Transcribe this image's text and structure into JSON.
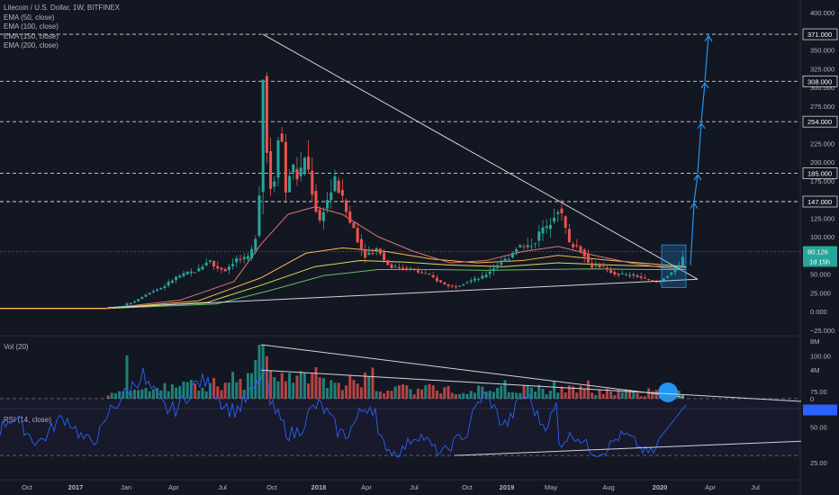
{
  "header": {
    "symbol_line": "Litecoin / U.S. Dollar, 1W, BITFINEX",
    "indicators": [
      "EMA (50, close)",
      "EMA (100, close)",
      "EMA (150, close)",
      "EMA (200, close)"
    ]
  },
  "price_axis_ticks": [
    "400.000",
    "375.000",
    "350.000",
    "325.000",
    "300.000",
    "275.000",
    "250.000",
    "225.000",
    "200.000",
    "175.000",
    "150.000",
    "125.000",
    "100.000",
    "75.000",
    "50.000",
    "25.000",
    "0.000",
    "−25.000"
  ],
  "price_level_labels": [
    "371.000",
    "308.000",
    "254.000",
    "185.000",
    "147.000"
  ],
  "current_price": {
    "value": "80.126",
    "countdown": "1d 15h"
  },
  "volume_pane": {
    "label": "Vol (20)",
    "ticks": [
      "8M",
      "4M",
      "0"
    ]
  },
  "rsi_pane": {
    "label": "RSI (14, close)",
    "ticks": [
      "100.00",
      "75.00",
      "50.00",
      "25.00"
    ]
  },
  "time_axis_labels": [
    "Oct",
    "2017",
    "Jan",
    "Apr",
    "Jul",
    "Oct",
    "2018",
    "Apr",
    "Jul",
    "Oct",
    "2019",
    "May",
    "Aug",
    "2020",
    "Apr",
    "Jul"
  ],
  "colors": {
    "background": "#131722",
    "up": "#26a69a",
    "down": "#ef5350",
    "trendline": "#d1d4dc",
    "arrow": "#2196f3",
    "rsi": "#2962ff",
    "ema50": "#e57373",
    "ema100": "#ffb74d",
    "ema150": "#d4e157",
    "ema200": "#66bb6a"
  },
  "chart_data": {
    "type": "candlestick",
    "title": "Litecoin / U.S. Dollar, 1W, BITFINEX",
    "ylim": [
      -35,
      410
    ],
    "price_levels": [
      371,
      308,
      254,
      185,
      147
    ],
    "price_path": [
      [
        0,
        5
      ],
      [
        100,
        5
      ],
      [
        120,
        5
      ],
      [
        135,
        7
      ],
      [
        150,
        14
      ],
      [
        165,
        25
      ],
      [
        180,
        32
      ],
      [
        195,
        45
      ],
      [
        205,
        50
      ],
      [
        220,
        55
      ],
      [
        232,
        70
      ],
      [
        238,
        60
      ],
      [
        250,
        55
      ],
      [
        262,
        70
      ],
      [
        275,
        70
      ],
      [
        283,
        90
      ],
      [
        288,
        160
      ],
      [
        292,
        320
      ],
      [
        297,
        200
      ],
      [
        303,
        145
      ],
      [
        308,
        240
      ],
      [
        313,
        230
      ],
      [
        318,
        150
      ],
      [
        323,
        200
      ],
      [
        329,
        180
      ],
      [
        334,
        185
      ],
      [
        339,
        210
      ],
      [
        344,
        180
      ],
      [
        350,
        140
      ],
      [
        355,
        120
      ],
      [
        360,
        140
      ],
      [
        366,
        155
      ],
      [
        372,
        175
      ],
      [
        377,
        160
      ],
      [
        383,
        140
      ],
      [
        388,
        120
      ],
      [
        394,
        110
      ],
      [
        400,
        85
      ],
      [
        406,
        75
      ],
      [
        412,
        80
      ],
      [
        420,
        85
      ],
      [
        428,
        65
      ],
      [
        435,
        60
      ],
      [
        445,
        58
      ],
      [
        455,
        58
      ],
      [
        465,
        52
      ],
      [
        475,
        50
      ],
      [
        485,
        42
      ],
      [
        495,
        35
      ],
      [
        505,
        33
      ],
      [
        515,
        38
      ],
      [
        525,
        42
      ],
      [
        535,
        45
      ],
      [
        545,
        55
      ],
      [
        555,
        65
      ],
      [
        565,
        72
      ],
      [
        575,
        88
      ],
      [
        585,
        85
      ],
      [
        595,
        95
      ],
      [
        602,
        112
      ],
      [
        608,
        110
      ],
      [
        614,
        128
      ],
      [
        620,
        138
      ],
      [
        626,
        122
      ],
      [
        632,
        90
      ],
      [
        640,
        88
      ],
      [
        648,
        80
      ],
      [
        655,
        60
      ],
      [
        662,
        62
      ],
      [
        668,
        60
      ],
      [
        675,
        55
      ],
      [
        683,
        50
      ],
      [
        690,
        50
      ],
      [
        698,
        48
      ],
      [
        705,
        48
      ],
      [
        712,
        45
      ],
      [
        720,
        42
      ],
      [
        728,
        39
      ],
      [
        734,
        41
      ],
      [
        740,
        48
      ],
      [
        748,
        54
      ],
      [
        755,
        62
      ],
      [
        760,
        76
      ],
      [
        762,
        80
      ]
    ],
    "ema50": [
      [
        120,
        4
      ],
      [
        200,
        15
      ],
      [
        260,
        40
      ],
      [
        290,
        90
      ],
      [
        320,
        130
      ],
      [
        350,
        140
      ],
      [
        380,
        130
      ],
      [
        420,
        100
      ],
      [
        460,
        80
      ],
      [
        500,
        65
      ],
      [
        540,
        68
      ],
      [
        580,
        80
      ],
      [
        620,
        87
      ],
      [
        660,
        75
      ],
      [
        700,
        65
      ],
      [
        740,
        58
      ],
      [
        762,
        56
      ]
    ],
    "ema100": [
      [
        120,
        4
      ],
      [
        220,
        14
      ],
      [
        290,
        45
      ],
      [
        340,
        78
      ],
      [
        380,
        85
      ],
      [
        430,
        80
      ],
      [
        480,
        70
      ],
      [
        530,
        65
      ],
      [
        580,
        68
      ],
      [
        620,
        75
      ],
      [
        680,
        68
      ],
      [
        740,
        62
      ],
      [
        762,
        60
      ]
    ],
    "ema150": [
      [
        120,
        4
      ],
      [
        230,
        12
      ],
      [
        290,
        35
      ],
      [
        350,
        60
      ],
      [
        400,
        68
      ],
      [
        450,
        66
      ],
      [
        500,
        62
      ],
      [
        560,
        60
      ],
      [
        620,
        65
      ],
      [
        680,
        62
      ],
      [
        740,
        60
      ],
      [
        762,
        59
      ]
    ],
    "ema200": [
      [
        120,
        4
      ],
      [
        240,
        10
      ],
      [
        300,
        28
      ],
      [
        360,
        48
      ],
      [
        420,
        56
      ],
      [
        480,
        56
      ],
      [
        540,
        55
      ],
      [
        600,
        56
      ],
      [
        660,
        57
      ],
      [
        720,
        56
      ],
      [
        762,
        56
      ]
    ],
    "trendlines": [
      [
        [
          292,
          371
        ],
        [
          775,
          43
        ]
      ],
      [
        [
          120,
          5
        ],
        [
          775,
          43
        ]
      ]
    ],
    "volume_trendline": [
      [
        290,
        7.5
      ],
      [
        760,
        0.2
      ]
    ],
    "rsi_trendlines": [
      [
        [
          290,
          90
        ],
        [
          890,
          68
        ]
      ],
      [
        [
          505,
          30
        ],
        [
          890,
          40
        ]
      ]
    ],
    "rsi_levels": [
      70,
      30
    ]
  }
}
